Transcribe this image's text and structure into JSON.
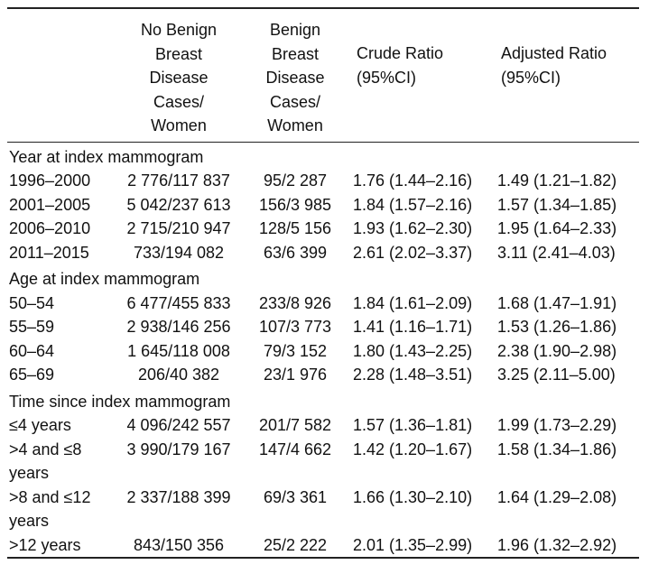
{
  "table": {
    "columns": [
      [],
      [
        "No Benign",
        "Breast",
        "Disease",
        "Cases/",
        "Women"
      ],
      [
        "Benign",
        "Breast",
        "Disease",
        "Cases/",
        "Women"
      ],
      [
        "Crude Ratio",
        "(95%CI)"
      ],
      [
        "Adjusted Ratio",
        "(95%CI)"
      ]
    ],
    "sections": [
      {
        "title": "Year at index mammogram",
        "rows": [
          [
            "1996–2000",
            "2 776/117 837",
            "95/2 287",
            "1.76 (1.44–2.16)",
            "1.49 (1.21–1.82)"
          ],
          [
            "2001–2005",
            "5 042/237 613",
            "156/3 985",
            "1.84 (1.57–2.16)",
            "1.57 (1.34–1.85)"
          ],
          [
            "2006–2010",
            "2 715/210 947",
            "128/5 156",
            "1.93 (1.62–2.30)",
            "1.95 (1.64–2.33)"
          ],
          [
            "2011–2015",
            "733/194 082",
            "63/6 399",
            "2.61 (2.02–3.37)",
            "3.11 (2.41–4.03)"
          ]
        ]
      },
      {
        "title": "Age at index mammogram",
        "rows": [
          [
            "50–54",
            "6 477/455 833",
            "233/8 926",
            "1.84 (1.61–2.09)",
            "1.68 (1.47–1.91)"
          ],
          [
            "55–59",
            "2 938/146 256",
            "107/3 773",
            "1.41 (1.16–1.71)",
            "1.53 (1.26–1.86)"
          ],
          [
            "60–64",
            "1 645/118 008",
            "79/3 152",
            "1.80 (1.43–2.25)",
            "2.38 (1.90–2.98)"
          ],
          [
            "65–69",
            "206/40 382",
            "23/1 976",
            "2.28 (1.48–3.51)",
            "3.25 (2.11–5.00)"
          ]
        ]
      },
      {
        "title": "Time since index mammogram",
        "rows": [
          [
            "≤4 years",
            "4 096/242 557",
            "201/7 582",
            "1.57 (1.36–1.81)",
            "1.99 (1.73–2.29)"
          ],
          [
            ">4 and ≤8 years",
            "3 990/179 167",
            "147/4 662",
            "1.42 (1.20–1.67)",
            "1.58 (1.34–1.86)"
          ],
          [
            ">8 and ≤12 years",
            "2 337/188 399",
            "69/3 361",
            "1.66 (1.30–2.10)",
            "1.64 (1.29–2.08)"
          ],
          [
            ">12 years",
            "843/150 356",
            "25/2 222",
            "2.01 (1.35–2.99)",
            "1.96 (1.32–2.92)"
          ]
        ]
      }
    ]
  }
}
